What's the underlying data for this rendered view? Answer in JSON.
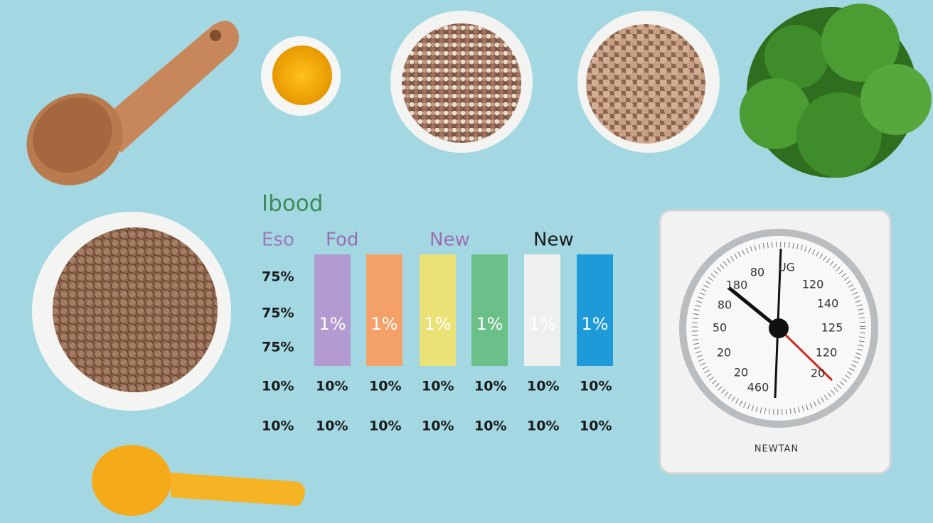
{
  "title": "Ibood",
  "headers": [
    {
      "text": "Eso",
      "color": "#9a7ab8"
    },
    {
      "text": "Fod",
      "color": "#9a6fb0"
    },
    {
      "text": "New",
      "color": "#9a6fb0"
    },
    {
      "text": "New",
      "color": "#1a1a1a"
    }
  ],
  "row_labels": [
    "75%",
    "75%",
    "75%"
  ],
  "bars": [
    {
      "label": "1%",
      "color": "#b39bd1"
    },
    {
      "label": "1%",
      "color": "#f4a169"
    },
    {
      "label": "1%",
      "color": "#ebe277"
    },
    {
      "label": "1%",
      "color": "#6bbf88"
    },
    {
      "label": "1%",
      "color": "#eef0f0"
    },
    {
      "label": "1%",
      "color": "#1e9ad8"
    }
  ],
  "rows": [
    [
      "10%",
      "10%",
      "10%",
      "10%",
      "10%",
      "10%",
      "10%"
    ],
    [
      "10%",
      "10%",
      "10%",
      "10%",
      "10%",
      "10%",
      "10%"
    ]
  ],
  "scale": {
    "brand": "NEWTAN",
    "dial_labels": [
      "180",
      "80",
      "UG",
      "120",
      "80",
      "140",
      "50",
      "125",
      "20",
      "120",
      "20",
      "20",
      "460"
    ]
  }
}
